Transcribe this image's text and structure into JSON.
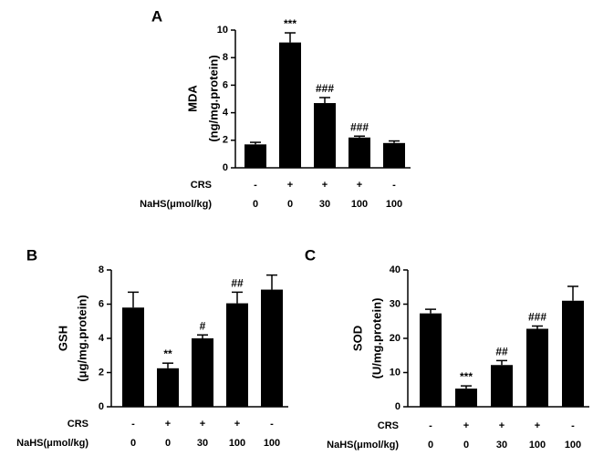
{
  "chart_data": [
    {
      "type": "bar",
      "panel": "A",
      "ylabel_line1": "MDA",
      "ylabel_line2": "(ng/mg.protein)",
      "ylim": [
        0,
        10
      ],
      "yticks": [
        0,
        2,
        4,
        6,
        8,
        10
      ],
      "values": [
        1.7,
        9.1,
        4.7,
        2.2,
        1.8
      ],
      "errors": [
        0.15,
        0.7,
        0.4,
        0.1,
        0.15
      ],
      "annotations": [
        "",
        "***",
        "###",
        "###",
        ""
      ],
      "row_labels": [
        "CRS",
        "NaHS(μmol/kg)"
      ],
      "crs": [
        "-",
        "+",
        "+",
        "+",
        "-"
      ],
      "nahs": [
        "0",
        "0",
        "30",
        "100",
        "100"
      ]
    },
    {
      "type": "bar",
      "panel": "B",
      "ylabel_line1": "GSH",
      "ylabel_line2": "(μg/mg.protein)",
      "ylim": [
        0,
        8
      ],
      "yticks": [
        0,
        2,
        4,
        6,
        8
      ],
      "values": [
        5.8,
        2.25,
        4.0,
        6.05,
        6.85
      ],
      "errors": [
        0.9,
        0.3,
        0.2,
        0.65,
        0.85
      ],
      "annotations": [
        "",
        "**",
        "#",
        "##",
        ""
      ],
      "row_labels": [
        "CRS",
        "NaHS(μmol/kg)"
      ],
      "crs": [
        "-",
        "+",
        "+",
        "+",
        "-"
      ],
      "nahs": [
        "0",
        "0",
        "30",
        "100",
        "100"
      ]
    },
    {
      "type": "bar",
      "panel": "C",
      "ylabel_line1": "SOD",
      "ylabel_line2": "(U/mg.protein)",
      "ylim": [
        0,
        40
      ],
      "yticks": [
        0,
        10,
        20,
        30,
        40
      ],
      "values": [
        27.3,
        5.3,
        12.2,
        22.8,
        31.0
      ],
      "errors": [
        1.2,
        0.8,
        1.3,
        0.8,
        4.2
      ],
      "annotations": [
        "",
        "***",
        "##",
        "###",
        ""
      ],
      "row_labels": [
        "CRS",
        "NaHS(μmol/kg)"
      ],
      "crs": [
        "-",
        "+",
        "+",
        "+",
        "-"
      ],
      "nahs": [
        "0",
        "0",
        "30",
        "100",
        "100"
      ]
    }
  ],
  "colors": {
    "bar": "#000000",
    "axis": "#000000"
  }
}
